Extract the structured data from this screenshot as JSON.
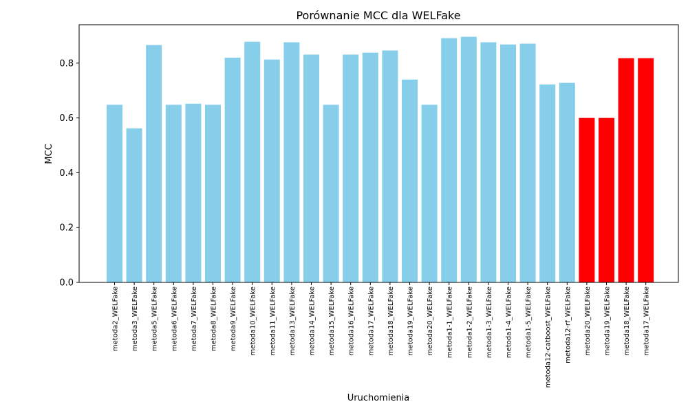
{
  "chart_data": {
    "type": "bar",
    "title": "Porównanie MCC dla WELFake",
    "xlabel": "Uruchomienia",
    "ylabel": "MCC",
    "ylim": [
      0,
      0.94
    ],
    "yticks": [
      "0.0",
      "0.2",
      "0.4",
      "0.6",
      "0.8"
    ],
    "ytick_values": [
      0.0,
      0.2,
      0.4,
      0.6,
      0.8
    ],
    "grid": false,
    "categories": [
      "metoda2_WELFake",
      "metoda3_WELFake",
      "metoda5_WELFake",
      "metoda6_WELFake",
      "metoda7_WELFake",
      "metoda8_WELFake",
      "metoda9_WELFake",
      "metoda10_WELFake",
      "metoda11_WELFake",
      "metoda13_WELFake",
      "metoda14_WELFake",
      "metoda15_WELFake",
      "metoda16_WELFake",
      "metoda17_WELFake",
      "metoda18_WELFake",
      "metoda19_WELFake",
      "metoda20_WELFake",
      "metoda1-1_WELFake",
      "metoda1-2_WELFake",
      "metoda1-3_WELFake",
      "metoda1-4_WELFake",
      "metoda1-5_WELFake",
      "metoda12-catboost_WELFake",
      "metoda12-rf_WELFake",
      "metoda20_WELFake",
      "metoda19_WELFake",
      "metoda18_WELFake",
      "metoda17_WELFake"
    ],
    "values": [
      0.648,
      0.562,
      0.866,
      0.648,
      0.652,
      0.648,
      0.82,
      0.878,
      0.813,
      0.876,
      0.831,
      0.648,
      0.831,
      0.838,
      0.846,
      0.74,
      0.648,
      0.891,
      0.896,
      0.876,
      0.868,
      0.871,
      0.722,
      0.728,
      0.6,
      0.6,
      0.818,
      0.818
    ],
    "colors": [
      "#87ceeb",
      "#87ceeb",
      "#87ceeb",
      "#87ceeb",
      "#87ceeb",
      "#87ceeb",
      "#87ceeb",
      "#87ceeb",
      "#87ceeb",
      "#87ceeb",
      "#87ceeb",
      "#87ceeb",
      "#87ceeb",
      "#87ceeb",
      "#87ceeb",
      "#87ceeb",
      "#87ceeb",
      "#87ceeb",
      "#87ceeb",
      "#87ceeb",
      "#87ceeb",
      "#87ceeb",
      "#87ceeb",
      "#87ceeb",
      "#ff0000",
      "#ff0000",
      "#ff0000",
      "#ff0000"
    ]
  }
}
